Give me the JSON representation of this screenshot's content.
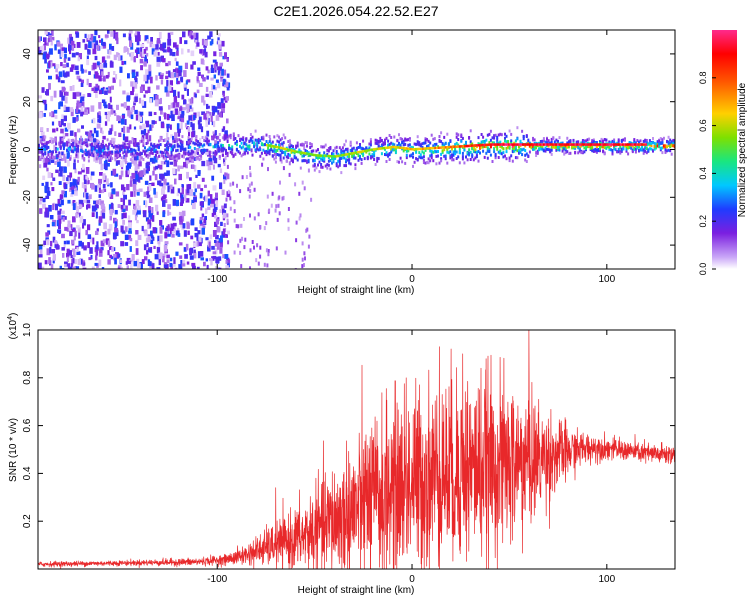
{
  "title": "C2E1.2026.054.22.52.E27",
  "colors": {
    "snr_line": "#e8282a",
    "frame": "#000000",
    "background": "#ffffff"
  },
  "chart_data": [
    {
      "type": "heatmap",
      "xlabel": "Height of straight line (km)",
      "ylabel": "Frequency (Hz)",
      "xlim": [
        -192,
        135
      ],
      "ylim": [
        -50,
        50
      ],
      "xticks": [
        -100,
        0,
        100
      ],
      "yticks": [
        -40,
        -20,
        0,
        20,
        40
      ],
      "colorbar": {
        "label": "Normalized spectral amplitude",
        "range": [
          0,
          1
        ],
        "ticks": [
          0.0,
          0.2,
          0.4,
          0.6,
          0.8
        ],
        "tick_labels": [
          "0.0",
          "0.2",
          "0.4",
          "0.6",
          "0.8"
        ],
        "colormap": [
          "#ffffff",
          "#7b1fe0",
          "#1f3cff",
          "#00c8ff",
          "#19e680",
          "#7ee000",
          "#ffd000",
          "#ff5a00",
          "#ff0000",
          "#ff2a8c"
        ]
      },
      "noise_region_x": [
        -192,
        -97
      ],
      "ridge": [
        {
          "x": -170,
          "f": 0.5,
          "a": 0.35
        },
        {
          "x": -150,
          "f": 0.5,
          "a": 0.3
        },
        {
          "x": -130,
          "f": 1.0,
          "a": 0.35
        },
        {
          "x": -110,
          "f": 1.5,
          "a": 0.4
        },
        {
          "x": -95,
          "f": 2.0,
          "a": 0.45
        },
        {
          "x": -80,
          "f": 2.5,
          "a": 0.55
        },
        {
          "x": -70,
          "f": 1.0,
          "a": 0.6
        },
        {
          "x": -60,
          "f": -1.0,
          "a": 0.55
        },
        {
          "x": -50,
          "f": -2.5,
          "a": 0.5
        },
        {
          "x": -40,
          "f": -3.0,
          "a": 0.55
        },
        {
          "x": -30,
          "f": -1.5,
          "a": 0.6
        },
        {
          "x": -20,
          "f": 0.0,
          "a": 0.6
        },
        {
          "x": -10,
          "f": 1.0,
          "a": 0.65
        },
        {
          "x": 0,
          "f": 0.0,
          "a": 0.65
        },
        {
          "x": 10,
          "f": 0.5,
          "a": 0.7
        },
        {
          "x": 20,
          "f": 1.0,
          "a": 0.75
        },
        {
          "x": 30,
          "f": 1.5,
          "a": 0.85
        },
        {
          "x": 40,
          "f": 2.0,
          "a": 0.9
        },
        {
          "x": 50,
          "f": 2.0,
          "a": 0.95
        },
        {
          "x": 60,
          "f": 2.0,
          "a": 0.95
        },
        {
          "x": 80,
          "f": 2.0,
          "a": 0.92
        },
        {
          "x": 100,
          "f": 2.0,
          "a": 0.92
        },
        {
          "x": 120,
          "f": 2.0,
          "a": 0.9
        },
        {
          "x": 135,
          "f": 2.0,
          "a": 0.9
        }
      ]
    },
    {
      "type": "line",
      "xlabel": "Height of straight line (km)",
      "ylabel": "SNR (10 * v/v)",
      "y_multiplier": "(x10",
      "y_multiplier_exp": "4",
      "y_multiplier_close": ")",
      "xlim": [
        -192,
        135
      ],
      "ylim": [
        0,
        1.0
      ],
      "xticks": [
        -100,
        0,
        100
      ],
      "yticks": [
        0.2,
        0.4,
        0.6,
        0.8,
        1.0
      ],
      "series": [
        {
          "name": "SNR",
          "envelope_x": [
            -192,
            -150,
            -110,
            -95,
            -85,
            -75,
            -65,
            -55,
            -45,
            -35,
            -25,
            -15,
            -5,
            5,
            15,
            25,
            35,
            45,
            55,
            65,
            75,
            85,
            95,
            105,
            115,
            125,
            135
          ],
          "envelope_mean": [
            0.02,
            0.025,
            0.03,
            0.04,
            0.06,
            0.09,
            0.11,
            0.14,
            0.18,
            0.22,
            0.27,
            0.31,
            0.35,
            0.38,
            0.4,
            0.42,
            0.43,
            0.44,
            0.44,
            0.46,
            0.48,
            0.5,
            0.51,
            0.5,
            0.49,
            0.48,
            0.48
          ],
          "envelope_spread": [
            0.01,
            0.01,
            0.015,
            0.02,
            0.04,
            0.07,
            0.1,
            0.14,
            0.2,
            0.26,
            0.3,
            0.33,
            0.35,
            0.36,
            0.36,
            0.36,
            0.35,
            0.33,
            0.3,
            0.22,
            0.14,
            0.07,
            0.05,
            0.04,
            0.04,
            0.04,
            0.04
          ],
          "peaks": [
            {
              "x": -70,
              "y": 0.34
            },
            {
              "x": -25,
              "y": 0.5
            },
            {
              "x": -3,
              "y": 0.8
            },
            {
              "x": 14,
              "y": 0.93
            },
            {
              "x": 26,
              "y": 0.9
            },
            {
              "x": 38,
              "y": 0.88
            },
            {
              "x": 60,
              "y": 1.0
            }
          ]
        }
      ]
    }
  ]
}
